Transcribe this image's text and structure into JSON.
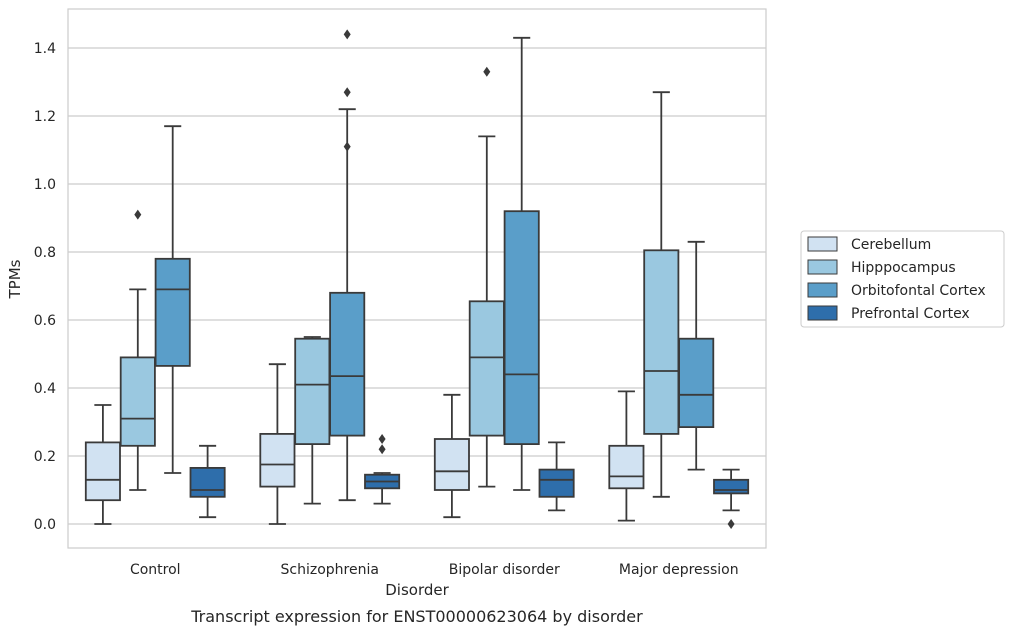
{
  "chart_data": {
    "type": "box",
    "xlabel": "Disorder",
    "ylabel": "TPMs",
    "caption": "Transcript expression for ENST00000623064 by disorder",
    "ylim": [
      -0.07,
      1.52
    ],
    "yticks": [
      "0.0",
      "0.2",
      "0.4",
      "0.6",
      "0.8",
      "1.0",
      "1.2",
      "1.4"
    ],
    "grid": "horizontal",
    "legend_position": "right",
    "categories": [
      "Control",
      "Schizophrenia",
      "Bipolar disorder",
      "Major depression"
    ],
    "series": [
      {
        "name": "Cerebellum",
        "color": "#d1e2f2",
        "boxes": [
          {
            "whislo": 0.0,
            "q1": 0.07,
            "med": 0.13,
            "q3": 0.24,
            "whishi": 0.35,
            "fliers": []
          },
          {
            "whislo": 0.0,
            "q1": 0.11,
            "med": 0.175,
            "q3": 0.265,
            "whishi": 0.47,
            "fliers": []
          },
          {
            "whislo": 0.02,
            "q1": 0.1,
            "med": 0.155,
            "q3": 0.25,
            "whishi": 0.38,
            "fliers": []
          },
          {
            "whislo": 0.01,
            "q1": 0.105,
            "med": 0.14,
            "q3": 0.23,
            "whishi": 0.39,
            "fliers": []
          }
        ]
      },
      {
        "name": "Hipppocampus",
        "color": "#9ac8e0",
        "boxes": [
          {
            "whislo": 0.1,
            "q1": 0.23,
            "med": 0.31,
            "q3": 0.49,
            "whishi": 0.69,
            "fliers": [
              0.91
            ]
          },
          {
            "whislo": 0.06,
            "q1": 0.235,
            "med": 0.41,
            "q3": 0.545,
            "whishi": 0.55,
            "fliers": []
          },
          {
            "whislo": 0.11,
            "q1": 0.26,
            "med": 0.49,
            "q3": 0.655,
            "whishi": 1.14,
            "fliers": [
              1.33
            ]
          },
          {
            "whislo": 0.08,
            "q1": 0.265,
            "med": 0.45,
            "q3": 0.805,
            "whishi": 1.27,
            "fliers": []
          }
        ]
      },
      {
        "name": "Orbitofontal Cortex",
        "color": "#5a9ec9",
        "boxes": [
          {
            "whislo": 0.15,
            "q1": 0.465,
            "med": 0.69,
            "q3": 0.78,
            "whishi": 1.17,
            "fliers": []
          },
          {
            "whislo": 0.07,
            "q1": 0.26,
            "med": 0.435,
            "q3": 0.68,
            "whishi": 1.22,
            "fliers": [
              1.11,
              1.27,
              1.44
            ]
          },
          {
            "whislo": 0.1,
            "q1": 0.235,
            "med": 0.44,
            "q3": 0.92,
            "whishi": 1.43,
            "fliers": []
          },
          {
            "whislo": 0.16,
            "q1": 0.285,
            "med": 0.38,
            "q3": 0.545,
            "whishi": 0.83,
            "fliers": []
          }
        ]
      },
      {
        "name": "Prefrontal Cortex",
        "color": "#2e6eab",
        "boxes": [
          {
            "whislo": 0.02,
            "q1": 0.08,
            "med": 0.1,
            "q3": 0.165,
            "whishi": 0.23,
            "fliers": []
          },
          {
            "whislo": 0.06,
            "q1": 0.105,
            "med": 0.125,
            "q3": 0.145,
            "whishi": 0.15,
            "fliers": [
              0.22,
              0.25
            ]
          },
          {
            "whislo": 0.04,
            "q1": 0.08,
            "med": 0.13,
            "q3": 0.16,
            "whishi": 0.24,
            "fliers": []
          },
          {
            "whislo": 0.04,
            "q1": 0.09,
            "med": 0.1,
            "q3": 0.13,
            "whishi": 0.16,
            "fliers": [
              0.0
            ]
          }
        ]
      }
    ]
  }
}
